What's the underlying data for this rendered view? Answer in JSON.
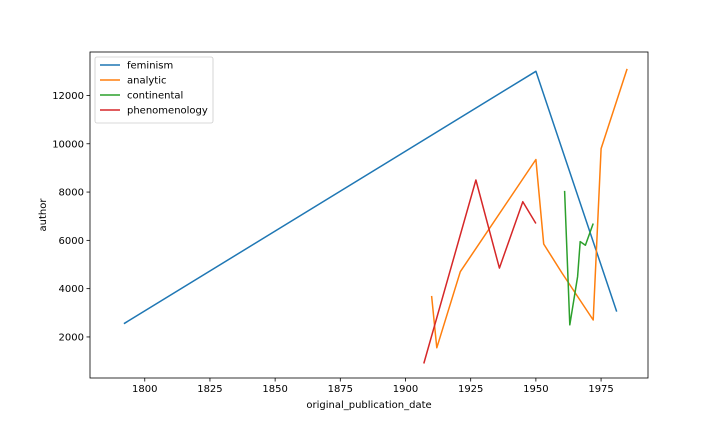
{
  "chart_data": {
    "type": "line",
    "title": "",
    "xlabel": "original_publication_date",
    "ylabel": "author",
    "xlim": [
      1779,
      1993
    ],
    "ylim": [
      300,
      13800
    ],
    "xticks": [
      1800,
      1825,
      1850,
      1875,
      1900,
      1925,
      1950,
      1975
    ],
    "yticks": [
      2000,
      4000,
      6000,
      8000,
      10000,
      12000
    ],
    "grid": false,
    "legend_position": "upper left",
    "series": [
      {
        "name": "feminism",
        "color": "#1f77b4",
        "points": [
          [
            1792,
            2550
          ],
          [
            1950,
            13000
          ],
          [
            1981,
            3050
          ]
        ]
      },
      {
        "name": "analytic",
        "color": "#ff7f0e",
        "points": [
          [
            1910,
            3700
          ],
          [
            1912,
            1550
          ],
          [
            1921,
            4700
          ],
          [
            1950,
            9350
          ],
          [
            1953,
            5850
          ],
          [
            1960,
            4650
          ],
          [
            1972,
            2700
          ],
          [
            1975,
            9800
          ],
          [
            1985,
            13100
          ]
        ]
      },
      {
        "name": "continental",
        "color": "#2ca02c",
        "points": [
          [
            1961,
            8050
          ],
          [
            1963,
            2500
          ],
          [
            1966,
            4500
          ],
          [
            1967,
            5950
          ],
          [
            1969,
            5800
          ],
          [
            1972,
            6700
          ]
        ]
      },
      {
        "name": "phenomenology",
        "color": "#d62728",
        "points": [
          [
            1907,
            900
          ],
          [
            1927,
            8500
          ],
          [
            1936,
            4850
          ],
          [
            1945,
            7600
          ],
          [
            1950,
            6700
          ]
        ]
      }
    ]
  }
}
